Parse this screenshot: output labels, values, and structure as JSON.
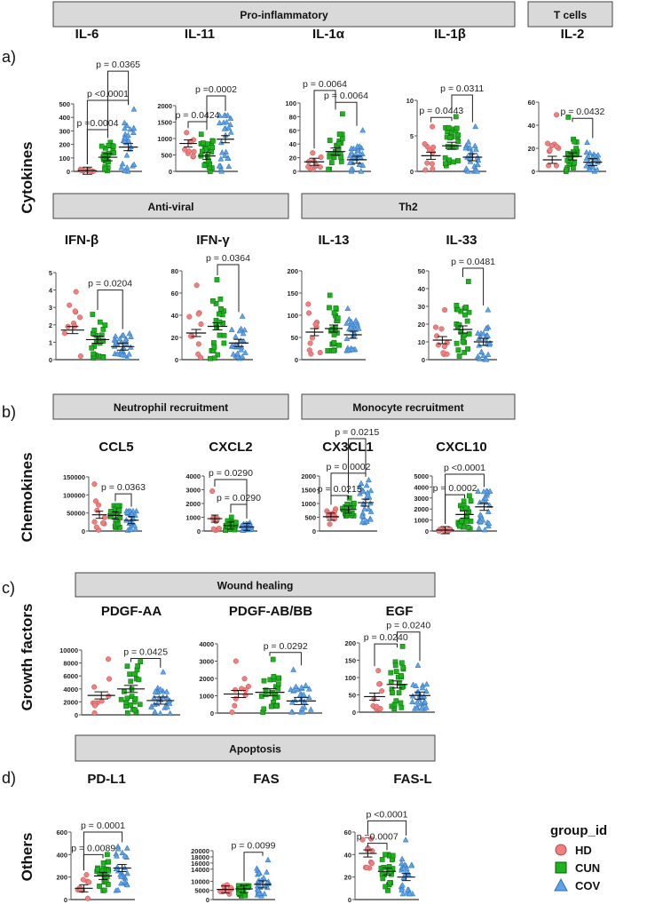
{
  "sections": [
    {
      "label": "a)",
      "row_label": "Cytokines"
    },
    {
      "label": "b)",
      "row_label": "Chemokines"
    },
    {
      "label": "c)",
      "row_label": "Growth factors"
    },
    {
      "label": "d)",
      "row_label": "Others"
    }
  ],
  "headers": [
    "Pro-inflammatory",
    "T cells",
    "Anti-viral",
    "Th2",
    "Neutrophil recruitment",
    "Monocyte recruitment",
    "Wound healing",
    "Apoptosis"
  ],
  "legend": {
    "title": "group_id",
    "groups": [
      {
        "name": "HD",
        "color": "#f08080",
        "shape": "circle"
      },
      {
        "name": "CUN",
        "color": "#1db31d",
        "shape": "square"
      },
      {
        "name": "COV",
        "color": "#5ea3ea",
        "shape": "triangle"
      }
    ]
  },
  "chart_data": [
    {
      "type": "scatter",
      "title": "IL-6",
      "ylim": [
        0,
        500
      ],
      "yticks": [
        "0",
        "100",
        "200",
        "300",
        "400",
        "500"
      ],
      "means": [
        5,
        105,
        180
      ],
      "ranges": [
        [
          0,
          15
        ],
        [
          5,
          215
        ],
        [
          0,
          460
        ]
      ],
      "brackets": [
        {
          "a": 0,
          "b": 1,
          "p": "p =0.0004",
          "y": 309
        },
        {
          "a": 0,
          "b": 2,
          "p": "p <0.0001",
          "y": 526
        },
        {
          "a": 1,
          "b": 2,
          "p": "p = 0.0365",
          "y": 743
        }
      ]
    },
    {
      "type": "scatter",
      "title": "IL-11",
      "ylim": [
        0,
        2000
      ],
      "yticks": [
        "0",
        "500",
        "1000",
        "1500",
        "2000"
      ],
      "means": [
        850,
        470,
        980
      ],
      "ranges": [
        [
          450,
          1180
        ],
        [
          0,
          1130
        ],
        [
          0,
          1700
        ]
      ],
      "brackets": [
        {
          "a": 0,
          "b": 1,
          "p": "p = 0.0424",
          "y": 1514
        },
        {
          "a": 1,
          "b": 2,
          "p": "p =0.0002",
          "y": 2297
        }
      ]
    },
    {
      "type": "scatter",
      "title": "IL-1α",
      "ylim": [
        0,
        100
      ],
      "yticks": [
        "0",
        "20",
        "40",
        "60",
        "80",
        "100"
      ],
      "means": [
        14,
        29,
        17
      ],
      "ranges": [
        [
          3,
          27
        ],
        [
          3,
          84
        ],
        [
          0,
          60
        ]
      ],
      "brackets": [
        {
          "a": 0,
          "b": 1,
          "p": "p = 0.0064",
          "y": 117
        },
        {
          "a": 1,
          "b": 2,
          "p": "p = 0.0064",
          "y": 101
        }
      ]
    },
    {
      "type": "scatter",
      "title": "IL-1β",
      "ylim": [
        0,
        10
      ],
      "yticks": [
        "0",
        "5",
        "10"
      ],
      "means": [
        2.2,
        3.6,
        2.0
      ],
      "ranges": [
        [
          0.2,
          6.3
        ],
        [
          0.8,
          7.7
        ],
        [
          0,
          6.3
        ]
      ],
      "brackets": [
        {
          "a": 0,
          "b": 1,
          "p": "p = 0.0443",
          "y": 7.6
        },
        {
          "a": 1,
          "b": 2,
          "p": "p = 0.0311",
          "y": 10.75
        }
      ]
    },
    {
      "type": "scatter",
      "title": "IL-2",
      "ylim": [
        0,
        60
      ],
      "yticks": [
        "0",
        "20",
        "40",
        "60"
      ],
      "means": [
        10,
        13,
        8
      ],
      "ranges": [
        [
          5,
          49
        ],
        [
          0,
          47
        ],
        [
          0,
          25
        ]
      ],
      "brackets": [
        {
          "a": 1,
          "b": 2,
          "p": "p = 0.0432",
          "y": 46
        }
      ]
    },
    {
      "type": "scatter",
      "title": "IFN-β",
      "ylim": [
        0,
        5
      ],
      "yticks": [
        "0",
        "1",
        "2",
        "3",
        "4",
        "5"
      ],
      "means": [
        1.7,
        1.15,
        0.75
      ],
      "ranges": [
        [
          0.2,
          3.9
        ],
        [
          0.1,
          2.6
        ],
        [
          0.1,
          1.5
        ]
      ],
      "brackets": [
        {
          "a": 1,
          "b": 2,
          "p": "p = 0.0204",
          "y": 4.0
        }
      ]
    },
    {
      "type": "scatter",
      "title": "IFN-γ",
      "ylim": [
        0,
        80
      ],
      "yticks": [
        "0",
        "20",
        "40",
        "60",
        "80"
      ],
      "means": [
        24,
        30,
        15
      ],
      "ranges": [
        [
          2,
          67
        ],
        [
          1,
          72
        ],
        [
          1,
          39
        ]
      ],
      "brackets": [
        {
          "a": 1,
          "b": 2,
          "p": "p = 0.0364",
          "y": 85.6
        }
      ]
    },
    {
      "type": "scatter",
      "title": "IL-13",
      "ylim": [
        0,
        200
      ],
      "yticks": [
        "0",
        "50",
        "100",
        "150",
        "200"
      ],
      "means": [
        62,
        70,
        56
      ],
      "ranges": [
        [
          13,
          125
        ],
        [
          20,
          145
        ],
        [
          20,
          115
        ]
      ],
      "brackets": []
    },
    {
      "type": "scatter",
      "title": "IL-33",
      "ylim": [
        0,
        50
      ],
      "yticks": [
        "0",
        "10",
        "20",
        "30",
        "40",
        "50"
      ],
      "means": [
        11,
        17,
        10
      ],
      "ranges": [
        [
          3,
          28
        ],
        [
          2,
          44
        ],
        [
          0,
          28
        ]
      ],
      "brackets": [
        {
          "a": 1,
          "b": 2,
          "p": "p = 0.0481",
          "y": 51.5
        }
      ]
    },
    {
      "type": "scatter",
      "title": "CCL5",
      "ylim": [
        0,
        150000
      ],
      "yticks": [
        "0",
        "50000",
        "100000",
        "150000"
      ],
      "means": [
        45000,
        43000,
        30000
      ],
      "ranges": [
        [
          3000,
          130000
        ],
        [
          10000,
          70000
        ],
        [
          2000,
          55000
        ]
      ],
      "brackets": [
        {
          "a": 1,
          "b": 2,
          "p": "p = 0.0363",
          "y": 103000
        }
      ]
    },
    {
      "type": "scatter",
      "title": "CXCL2",
      "ylim": [
        0,
        4000
      ],
      "yticks": [
        "0",
        "1000",
        "2000",
        "3000",
        "4000"
      ],
      "means": [
        900,
        400,
        300
      ],
      "ranges": [
        [
          50,
          2900
        ],
        [
          50,
          1000
        ],
        [
          50,
          600
        ]
      ],
      "brackets": [
        {
          "a": 0,
          "b": 2,
          "p": "p = 0.0290",
          "y": 3740
        },
        {
          "a": 1,
          "b": 2,
          "p": "p = 0.0290",
          "y": 1935
        }
      ]
    },
    {
      "type": "scatter",
      "title": "CX3CL1",
      "ylim": [
        0,
        2000
      ],
      "yticks": [
        "0",
        "500",
        "1000",
        "1500",
        "2000"
      ],
      "means": [
        520,
        780,
        1030
      ],
      "ranges": [
        [
          250,
          800
        ],
        [
          550,
          1200
        ],
        [
          300,
          1850
        ]
      ],
      "brackets": [
        {
          "a": 0,
          "b": 1,
          "p": "p = 0.0215",
          "y": 1290
        },
        {
          "a": 0,
          "b": 2,
          "p": "p = 0.0002",
          "y": 2100
        },
        {
          "a": 1,
          "b": 2,
          "p": "p = 0.0215",
          "y": 2580
        }
      ]
    },
    {
      "type": "scatter",
      "title": "CXCL10",
      "ylim": [
        0,
        5000
      ],
      "yticks": [
        "0",
        "1000",
        "2000",
        "3000",
        "4000",
        "5000"
      ],
      "means": [
        80,
        1500,
        2200
      ],
      "ranges": [
        [
          0,
          150
        ],
        [
          200,
          3200
        ],
        [
          100,
          3600
        ]
      ],
      "brackets": [
        {
          "a": 0,
          "b": 1,
          "p": "p = 0.0002",
          "y": 3300
        },
        {
          "a": 0,
          "b": 2,
          "p": "p <0.0001",
          "y": 5160
        }
      ]
    },
    {
      "type": "scatter",
      "title": "PDGF-AA",
      "ylim": [
        0,
        10000
      ],
      "yticks": [
        "0",
        "2000",
        "4000",
        "6000",
        "8000",
        "10000"
      ],
      "means": [
        3000,
        4000,
        2200
      ],
      "ranges": [
        [
          300,
          8600
        ],
        [
          300,
          8200
        ],
        [
          200,
          6600
        ]
      ],
      "brackets": [
        {
          "a": 1,
          "b": 2,
          "p": "p = 0.0425",
          "y": 8700
        }
      ]
    },
    {
      "type": "scatter",
      "title": "PDGF-AB/BB",
      "ylim": [
        0,
        4000
      ],
      "yticks": [
        "0",
        "1000",
        "2000",
        "3000",
        "4000"
      ],
      "means": [
        1100,
        1200,
        700
      ],
      "ranges": [
        [
          50,
          3000
        ],
        [
          50,
          3100
        ],
        [
          50,
          2500
        ]
      ],
      "brackets": [
        {
          "a": 1,
          "b": 2,
          "p": "p = 0.0292",
          "y": 3500
        }
      ]
    },
    {
      "type": "scatter",
      "title": "EGF",
      "ylim": [
        0,
        200
      ],
      "yticks": [
        "0",
        "50",
        "100",
        "150",
        "200"
      ],
      "means": [
        45,
        80,
        48
      ],
      "ranges": [
        [
          10,
          120
        ],
        [
          10,
          190
        ],
        [
          10,
          135
        ]
      ],
      "brackets": [
        {
          "a": 0,
          "b": 1,
          "p": "p = 0.0240",
          "y": 197
        },
        {
          "a": 1,
          "b": 2,
          "p": "p = 0.0240",
          "y": 229
        }
      ]
    },
    {
      "type": "scatter",
      "title": "PD-L1",
      "ylim": [
        0,
        600
      ],
      "yticks": [
        "0",
        "200",
        "400",
        "600"
      ],
      "means": [
        100,
        210,
        280
      ],
      "ranges": [
        [
          10,
          220
        ],
        [
          80,
          400
        ],
        [
          80,
          470
        ]
      ],
      "brackets": [
        {
          "a": 0,
          "b": 1,
          "p": "p = 0.0089",
          "y": 400
        },
        {
          "a": 0,
          "b": 2,
          "p": "p = 0.0001",
          "y": 600
        }
      ]
    },
    {
      "type": "scatter",
      "title": "FAS",
      "ylim": [
        0,
        20000
      ],
      "axis_break": [
        12000,
        13000
      ],
      "yticks": [
        "0",
        "5000",
        "10000",
        "14000",
        "16000",
        "18000",
        "20000"
      ],
      "means": [
        5500,
        5800,
        8300
      ],
      "ranges": [
        [
          3000,
          8000
        ],
        [
          2000,
          7500
        ],
        [
          2000,
          17000
        ]
      ],
      "brackets": [
        {
          "a": 1,
          "b": 2,
          "p": "p = 0.0099",
          "y": 19500
        }
      ]
    },
    {
      "type": "scatter",
      "title": "FAS-L",
      "ylim": [
        0,
        60
      ],
      "yticks": [
        "0",
        "20",
        "40",
        "60"
      ],
      "means": [
        41,
        25,
        20
      ],
      "ranges": [
        [
          28,
          54
        ],
        [
          8,
          40
        ],
        [
          5,
          53
        ]
      ],
      "brackets": [
        {
          "a": 0,
          "b": 1,
          "p": "p =0.0007",
          "y": 50
        },
        {
          "a": 0,
          "b": 2,
          "p": "p <0.0001",
          "y": 70
        }
      ]
    }
  ]
}
